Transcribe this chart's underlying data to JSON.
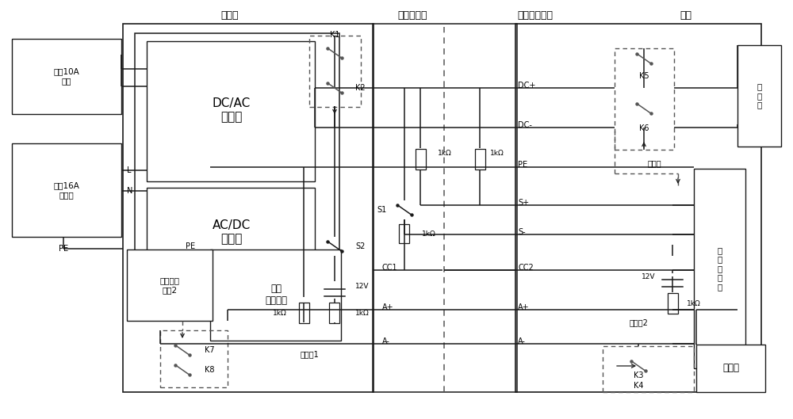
{
  "bg_color": "#ffffff",
  "line_color": "#1a1a1a",
  "dashed_color": "#555555",
  "labels": {
    "control_box": "控制盒",
    "dc_gun": "直流充电枪",
    "dc_socket": "直流充电插座",
    "vehicle": "车辆",
    "dcac": "DC/AC\n逆变器",
    "acdc": "AC/DC\n转换器",
    "detect": "检测\n控制装置",
    "low_pwr": "低压辅助\n电源2",
    "gb10a": "国标10A\n插排",
    "gb16a": "国标16A\n三插头",
    "batt_pack": "电\n池\n包",
    "battery": "蓄电池",
    "veh_ctrl": "车\n辆\n控\n制\n器",
    "L": "L",
    "N": "N",
    "PE1": "PE",
    "PE2": "PE",
    "DC_plus": "DC+",
    "DC_minus": "DC-",
    "PE_sig": "PE",
    "SP": "S+",
    "SM": "S-",
    "CC1": "CC1",
    "CC2": "CC2",
    "AP1": "A+",
    "AP2": "A+",
    "AM1": "A-",
    "AM2": "A-",
    "det1": "检测点1",
    "det2": "检测点2",
    "car_gnd": "车身地",
    "12V_L": "12V",
    "12V_R": "12V",
    "1k1": "1kΩ",
    "1k2": "1kΩ",
    "1k3": "1kΩ",
    "1k4": "1kΩ",
    "1k5": "1kΩ",
    "1k6": "1kΩ",
    "K1": "K1",
    "K2": "K2",
    "K3": "K3",
    "K4": "K4",
    "K5": "K5",
    "K6": "K6",
    "K7": "K7",
    "K8": "K8",
    "S1": "S1",
    "S2": "S2"
  }
}
